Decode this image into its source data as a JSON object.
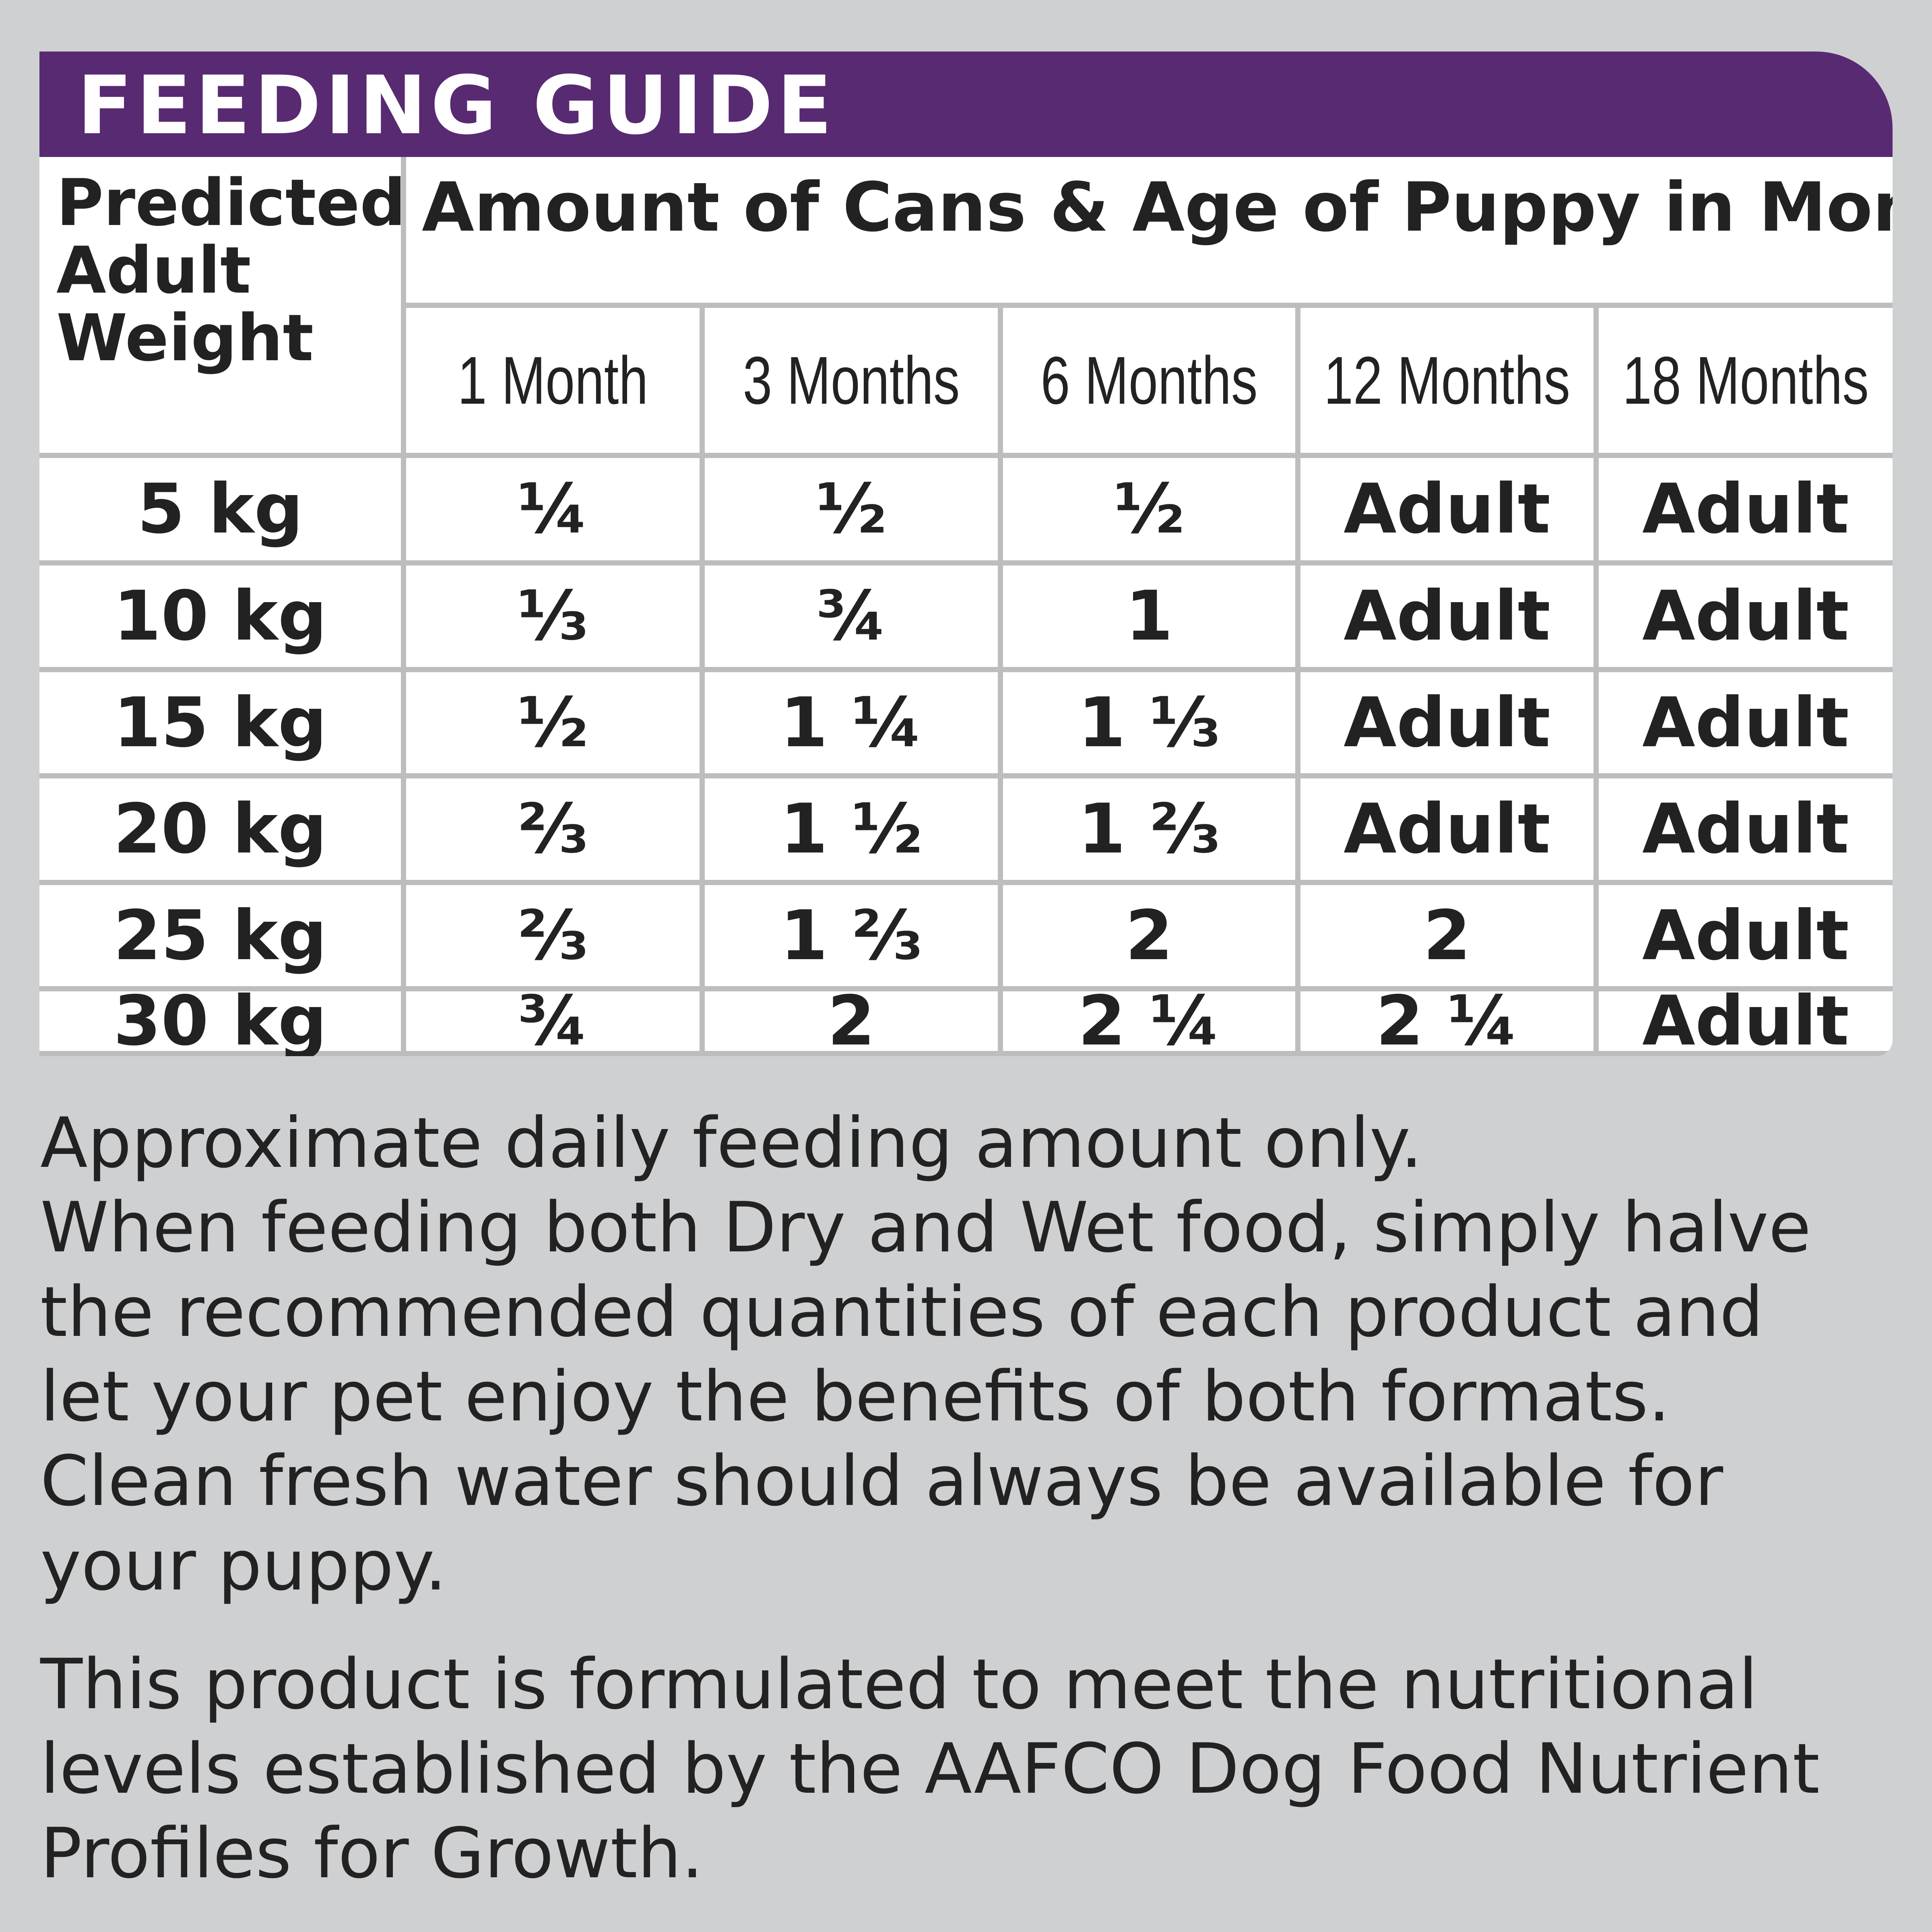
{
  "header": {
    "title": "FEEDING GUIDE"
  },
  "table": {
    "weight_header_lines": [
      "Predicted",
      "Adult",
      "Weight"
    ],
    "amount_header": "Amount of Cans & Age of Puppy in Months",
    "age_columns": [
      "1 Month",
      "3 Months",
      "6 Months",
      "12 Months",
      "18 Months"
    ],
    "rows": [
      {
        "weight": "5 kg",
        "values": [
          "¼",
          "½",
          "½",
          "Adult",
          "Adult"
        ]
      },
      {
        "weight": "10 kg",
        "values": [
          "⅓",
          "¾",
          "1",
          "Adult",
          "Adult"
        ]
      },
      {
        "weight": "15 kg",
        "values": [
          "½",
          "1 ¼",
          "1 ⅓",
          "Adult",
          "Adult"
        ]
      },
      {
        "weight": "20 kg",
        "values": [
          "⅔",
          "1 ½",
          "1 ⅔",
          "Adult",
          "Adult"
        ]
      },
      {
        "weight": "25 kg",
        "values": [
          "⅔",
          "1 ⅔",
          "2",
          "2",
          "Adult"
        ]
      },
      {
        "weight": "30 kg",
        "values": [
          "¾",
          "2",
          "2 ¼",
          "2 ¼",
          "Adult"
        ]
      }
    ]
  },
  "notes": {
    "paragraph1": [
      "Approximate daily feeding amount only.",
      "When feeding both Dry and Wet food, simply halve",
      "the recommended quantities of each product and",
      "let your pet enjoy the benefits of both formats.",
      "Clean fresh water should always be available for",
      "your puppy."
    ],
    "paragraph2": [
      "This product is formulated to meet the nutritional",
      "levels established by the AAFCO Dog Food Nutrient",
      "Profiles for Growth."
    ]
  },
  "colors": {
    "banner": "#582a72",
    "background": "#cfd0d2",
    "grid_lines": "#bdbdbf",
    "text": "#222222"
  }
}
